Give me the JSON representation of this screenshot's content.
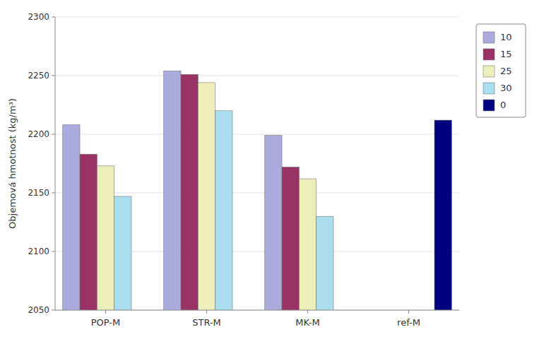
{
  "chart_data": {
    "type": "bar",
    "categories": [
      "POP-M",
      "STR-M",
      "MK-M",
      "ref-M"
    ],
    "series": [
      {
        "name": "10",
        "color": "#AAAADD",
        "values": [
          2208,
          2254,
          2199,
          null
        ]
      },
      {
        "name": "15",
        "color": "#993366",
        "values": [
          2183,
          2251,
          2172,
          null
        ]
      },
      {
        "name": "25",
        "color": "#EEEEBB",
        "values": [
          2173,
          2244,
          2162,
          null
        ]
      },
      {
        "name": "30",
        "color": "#AADDEE",
        "values": [
          2147,
          2220,
          2130,
          null
        ]
      },
      {
        "name": "0",
        "color": "#000080",
        "values": [
          null,
          null,
          null,
          2212
        ]
      }
    ],
    "ylabel": "Objemová hmotnost (kg/m³)",
    "ylim": [
      2050,
      2300
    ],
    "yticks": [
      2050,
      2100,
      2150,
      2200,
      2250,
      2300
    ],
    "grid": true,
    "legend": "right"
  }
}
